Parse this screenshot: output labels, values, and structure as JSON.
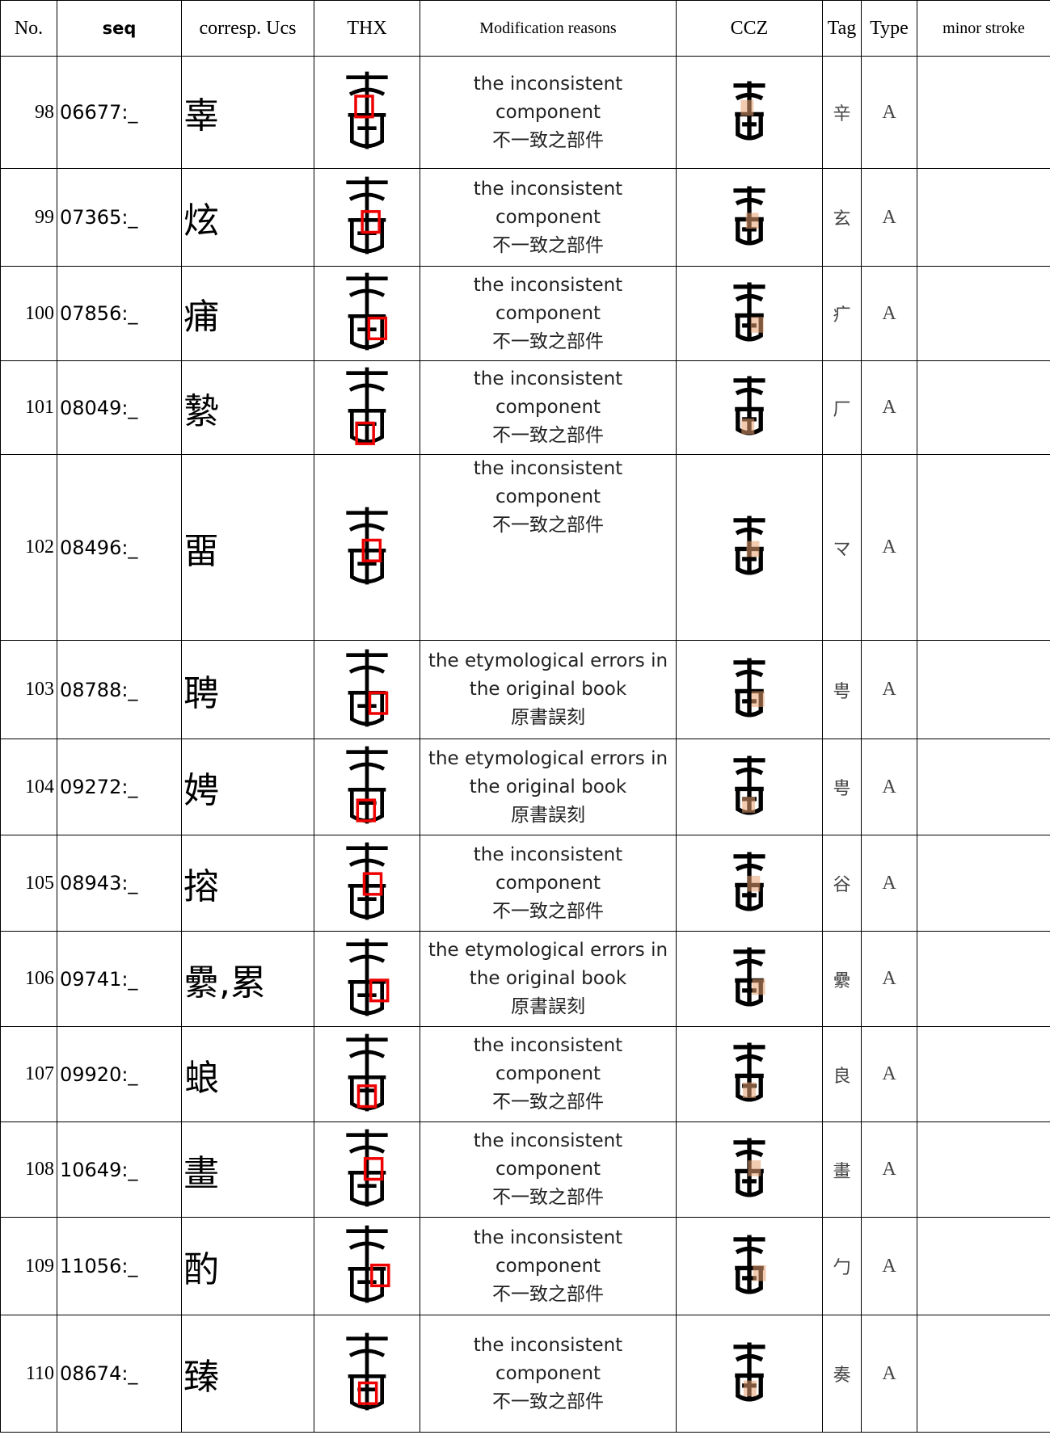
{
  "table": {
    "header": [
      "No.",
      "seq",
      "corresp. Ucs",
      "THX",
      "Modification reasons",
      "CCZ",
      "Tag",
      "Type",
      "minor stroke"
    ],
    "rows": [
      {
        "no": "98",
        "seq": "06677:_",
        "ucs": "辜",
        "reason_en": "the inconsistent component",
        "reason_zh": "不一致之部件",
        "tag": "辛",
        "type": "A"
      },
      {
        "no": "99",
        "seq": "07365:_",
        "ucs": "炫",
        "reason_en": "the inconsistent component",
        "reason_zh": "不一致之部件",
        "tag": "玄",
        "type": "A"
      },
      {
        "no": "100",
        "seq": "07856:_",
        "ucs": "痡",
        "reason_en": "the inconsistent component",
        "reason_zh": "不一致之部件",
        "tag": "疒",
        "type": "A"
      },
      {
        "no": "101",
        "seq": "08049:_",
        "ucs": "縶",
        "reason_en": "the inconsistent component",
        "reason_zh": "不一致之部件",
        "tag": "厂",
        "type": "A"
      },
      {
        "no": "102",
        "seq": "08496:_",
        "ucs": "畱",
        "reason_en": "the inconsistent component",
        "reason_zh": "不一致之部件",
        "tag": "マ",
        "type": "A"
      },
      {
        "no": "103",
        "seq": "08788:_",
        "ucs": "聘",
        "reason_en": "the etymological errors in the original book",
        "reason_zh": "原書誤刻",
        "tag": "甹",
        "type": "A"
      },
      {
        "no": "104",
        "seq": "09272:_",
        "ucs": "娉",
        "reason_en": "the etymological errors in the original book",
        "reason_zh": "原書誤刻",
        "tag": "甹",
        "type": "A"
      },
      {
        "no": "105",
        "seq": "08943:_",
        "ucs": "搈",
        "reason_en": "the inconsistent component",
        "reason_zh": "不一致之部件",
        "tag": "谷",
        "type": "A"
      },
      {
        "no": "106",
        "seq": "09741:_",
        "ucs": "纍,累",
        "reason_en": "the etymological errors in the original book",
        "reason_zh": "原書誤刻",
        "tag": "纍",
        "type": "A"
      },
      {
        "no": "107",
        "seq": "09920:_",
        "ucs": "蜋",
        "reason_en": "the inconsistent component",
        "reason_zh": "不一致之部件",
        "tag": "良",
        "type": "A"
      },
      {
        "no": "108",
        "seq": "10649:_",
        "ucs": "畫",
        "reason_en": "the inconsistent component",
        "reason_zh": "不一致之部件",
        "tag": "畫",
        "type": "A"
      },
      {
        "no": "109",
        "seq": "11056:_",
        "ucs": "酌",
        "reason_en": "the inconsistent component",
        "reason_zh": "不一致之部件",
        "tag": "勹",
        "type": "A"
      },
      {
        "no": "110",
        "seq": "08674:_",
        "ucs": "臻",
        "reason_en": "the inconsistent component",
        "reason_zh": "不一致之部件",
        "tag": "奏",
        "type": "A"
      }
    ]
  }
}
